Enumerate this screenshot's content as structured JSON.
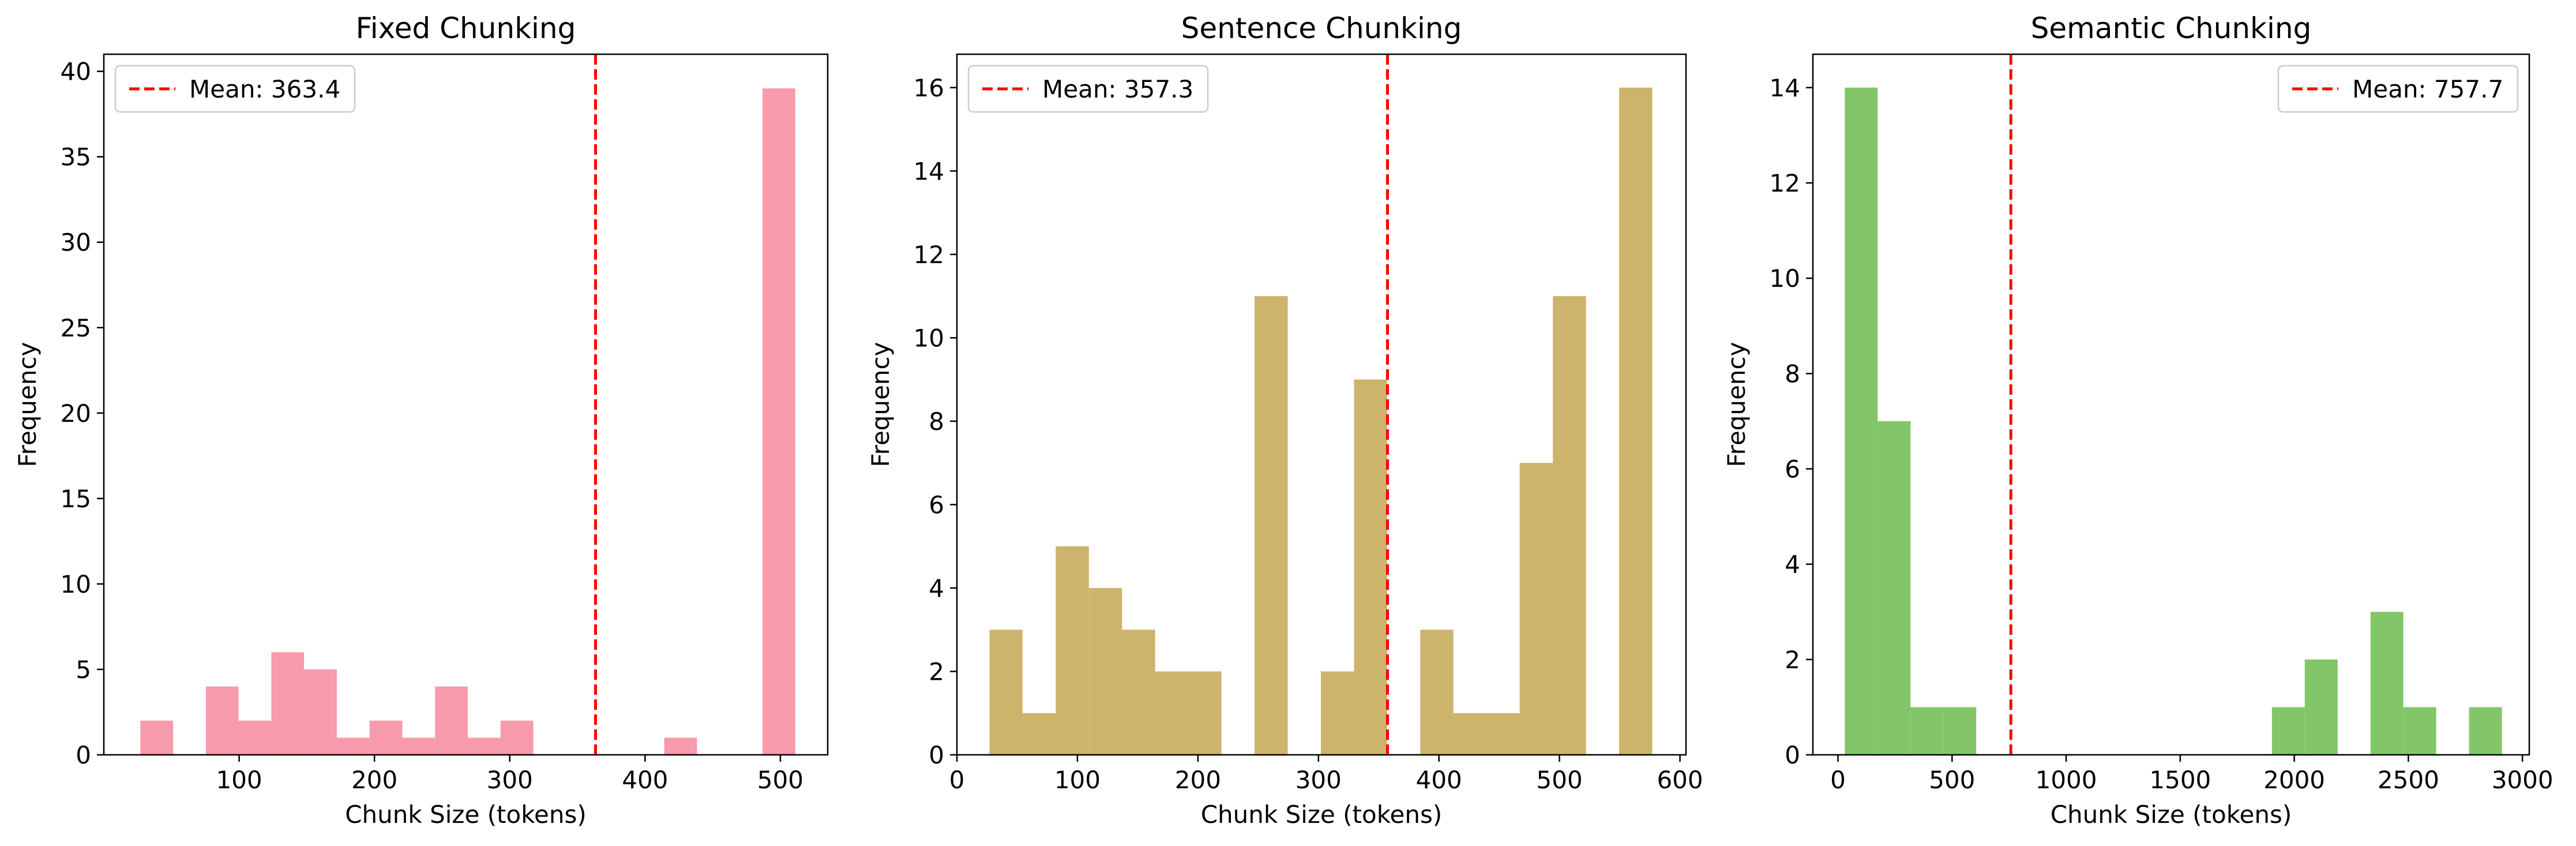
{
  "chart_data": [
    {
      "type": "bar",
      "title": "Fixed Chunking",
      "xlabel": "Chunk Size (tokens)",
      "ylabel": "Frequency",
      "xlim": [
        0,
        535
      ],
      "ylim": [
        0,
        41
      ],
      "xticks": [
        100,
        200,
        300,
        400,
        500
      ],
      "yticks": [
        0,
        5,
        10,
        15,
        20,
        25,
        30,
        35,
        40
      ],
      "bin_edges": [
        27,
        51.2,
        75.4,
        99.6,
        123.8,
        148,
        172.2,
        196.4,
        220.6,
        244.8,
        269,
        293.2,
        317.4,
        341.6,
        365.8,
        390,
        414.2,
        438.4,
        462.6,
        486.8,
        511
      ],
      "values": [
        2,
        0,
        4,
        2,
        6,
        5,
        1,
        2,
        1,
        4,
        1,
        2,
        0,
        0,
        0,
        0,
        1,
        0,
        0,
        39
      ],
      "color": "#f79aab",
      "mean_value": 363.4,
      "legend_label": "Mean: 363.4",
      "legend_position": "upper left",
      "grid": false
    },
    {
      "type": "bar",
      "title": "Sentence Chunking",
      "xlabel": "Chunk Size (tokens)",
      "ylabel": "Frequency",
      "xlim": [
        0,
        605
      ],
      "ylim": [
        0,
        16.8
      ],
      "xticks": [
        0,
        100,
        200,
        300,
        400,
        500,
        600
      ],
      "yticks": [
        0,
        2,
        4,
        6,
        8,
        10,
        12,
        14,
        16
      ],
      "bin_edges": [
        27,
        54.5,
        82,
        109.5,
        137,
        164.5,
        192,
        219.5,
        247,
        274.5,
        302,
        329.5,
        357,
        384.5,
        412,
        439.5,
        467,
        494.5,
        522,
        549.5,
        577
      ],
      "values": [
        3,
        1,
        5,
        4,
        3,
        2,
        2,
        0,
        11,
        0,
        2,
        9,
        0,
        3,
        1,
        1,
        7,
        11,
        0,
        16
      ],
      "color": "#cdb46c",
      "mean_value": 357.3,
      "legend_label": "Mean: 357.3",
      "legend_position": "upper left",
      "grid": false
    },
    {
      "type": "bar",
      "title": "Semantic Chunking",
      "xlabel": "Chunk Size (tokens)",
      "ylabel": "Frequency",
      "xlim": [
        -110,
        3030
      ],
      "ylim": [
        0,
        14.7
      ],
      "xticks": [
        0,
        500,
        1000,
        1500,
        2000,
        2500,
        3000
      ],
      "yticks": [
        0,
        2,
        4,
        6,
        8,
        10,
        12,
        14
      ],
      "bin_edges": [
        30,
        174,
        318,
        462,
        606,
        750,
        894,
        1038,
        1182,
        1326,
        1470,
        1614,
        1758,
        1902,
        2046,
        2190,
        2334,
        2478,
        2622,
        2766,
        2910
      ],
      "values": [
        14,
        7,
        1,
        1,
        0,
        0,
        0,
        0,
        0,
        0,
        0,
        0,
        0,
        1,
        2,
        0,
        3,
        1,
        0,
        1
      ],
      "color": "#83c66a",
      "mean_value": 757.7,
      "legend_label": "Mean: 757.7",
      "legend_position": "upper right",
      "grid": false
    }
  ]
}
